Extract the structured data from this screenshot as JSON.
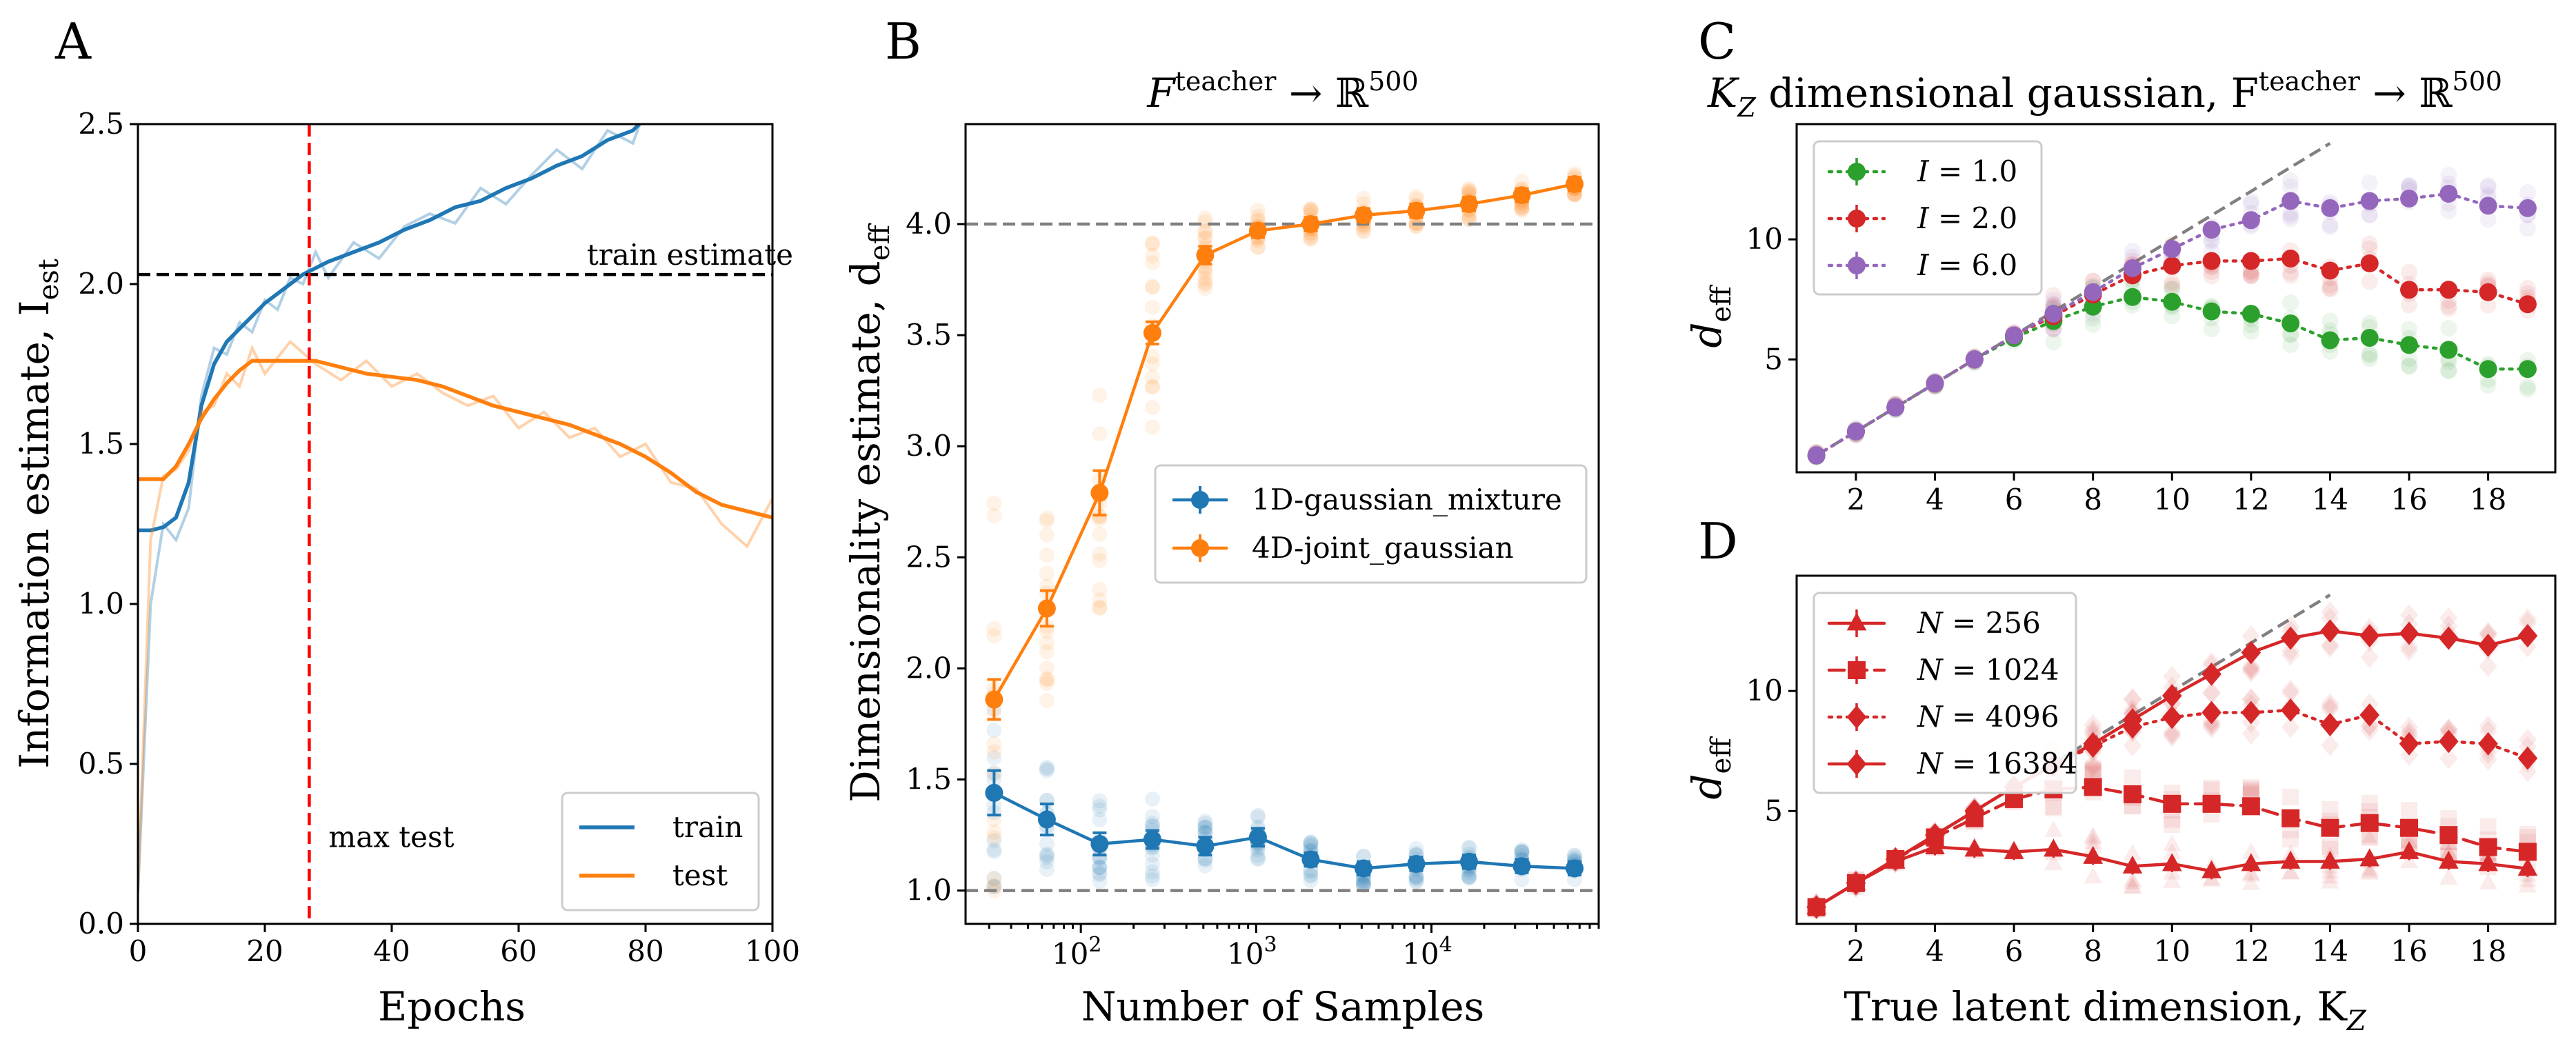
{
  "colors": {
    "blue": "#1f77b4",
    "orange": "#ff7f0e",
    "green": "#2ca02c",
    "red": "#d62728",
    "purple": "#9467bd",
    "gray": "#808080"
  },
  "chart_data": [
    {
      "id": "A",
      "panel_label": "A",
      "type": "line",
      "title": "",
      "xlabel": "Epochs",
      "ylabel": "Information estimate, I",
      "ylabel_sub": "est",
      "xlim": [
        0,
        100
      ],
      "ylim": [
        0,
        2.5
      ],
      "xticks": [
        "0",
        "20",
        "40",
        "60",
        "80",
        "100"
      ],
      "yticks": [
        "0.0",
        "0.5",
        "1.0",
        "1.5",
        "2.0",
        "2.5"
      ],
      "series": [
        {
          "name": "train",
          "color": "#1f77b4",
          "x": [
            0,
            2,
            4,
            6,
            8,
            10,
            12,
            14,
            16,
            18,
            20,
            22,
            24,
            26,
            28,
            30,
            34,
            38,
            42,
            46,
            50,
            54,
            58,
            62,
            66,
            70,
            74,
            78,
            80
          ],
          "smooth": [
            1.23,
            1.23,
            1.24,
            1.27,
            1.38,
            1.62,
            1.75,
            1.82,
            1.86,
            1.9,
            1.94,
            1.97,
            2.0,
            2.03,
            2.05,
            2.07,
            2.1,
            2.13,
            2.17,
            2.2,
            2.24,
            2.26,
            2.3,
            2.33,
            2.37,
            2.4,
            2.45,
            2.48,
            2.52
          ],
          "raw": [
            0.1,
            1.0,
            1.25,
            1.2,
            1.3,
            1.65,
            1.8,
            1.78,
            1.88,
            1.85,
            1.95,
            1.92,
            2.02,
            2.0,
            2.1,
            2.02,
            2.13,
            2.08,
            2.18,
            2.22,
            2.19,
            2.3,
            2.25,
            2.34,
            2.42,
            2.36,
            2.48,
            2.44,
            2.55
          ]
        },
        {
          "name": "test",
          "color": "#ff7f0e",
          "x": [
            0,
            2,
            4,
            6,
            8,
            10,
            12,
            14,
            16,
            18,
            20,
            24,
            28,
            32,
            36,
            40,
            44,
            48,
            52,
            56,
            60,
            64,
            68,
            72,
            76,
            80,
            84,
            88,
            92,
            96,
            100
          ],
          "smooth": [
            1.39,
            1.39,
            1.39,
            1.43,
            1.5,
            1.58,
            1.64,
            1.69,
            1.73,
            1.76,
            1.76,
            1.76,
            1.76,
            1.74,
            1.72,
            1.71,
            1.7,
            1.68,
            1.65,
            1.62,
            1.6,
            1.58,
            1.56,
            1.53,
            1.5,
            1.46,
            1.41,
            1.35,
            1.31,
            1.29,
            1.27
          ],
          "raw": [
            0.1,
            1.2,
            1.4,
            1.42,
            1.48,
            1.6,
            1.62,
            1.72,
            1.68,
            1.8,
            1.72,
            1.82,
            1.75,
            1.7,
            1.76,
            1.68,
            1.72,
            1.66,
            1.62,
            1.65,
            1.55,
            1.6,
            1.52,
            1.55,
            1.46,
            1.5,
            1.38,
            1.36,
            1.25,
            1.18,
            1.33
          ]
        }
      ],
      "hline": {
        "y": 2.03,
        "label": "train estimate"
      },
      "vline": {
        "x": 27,
        "label": "max test"
      },
      "legend": [
        "train",
        "test"
      ],
      "legend_loc": "lower-right"
    },
    {
      "id": "B",
      "panel_label": "B",
      "type": "scatter",
      "title": "F^teacher → ℝ^500",
      "title_main": "F",
      "title_sup": "teacher",
      "title_mid": " → ℝ",
      "title_sup2": "500",
      "xlabel": "Number of Samples",
      "ylabel": "Dimensionality estimate, d",
      "ylabel_sub": "eff",
      "xscale": "log",
      "xlim": [
        22,
        90000
      ],
      "ylim": [
        0.85,
        4.45
      ],
      "xticks": [
        {
          "v": 100,
          "base": "10",
          "exp": "2"
        },
        {
          "v": 1000,
          "base": "10",
          "exp": "3"
        },
        {
          "v": 10000,
          "base": "10",
          "exp": "4"
        }
      ],
      "yticks": [
        "1.0",
        "1.5",
        "2.0",
        "2.5",
        "3.0",
        "3.5",
        "4.0"
      ],
      "x": [
        32,
        64,
        128,
        256,
        512,
        1024,
        2048,
        4096,
        8192,
        16384,
        32768,
        65536
      ],
      "series": [
        {
          "name": "1D-gaussian_mixture",
          "color": "#1f77b4",
          "y": [
            1.44,
            1.32,
            1.21,
            1.23,
            1.2,
            1.24,
            1.14,
            1.1,
            1.12,
            1.13,
            1.11,
            1.1
          ],
          "err": [
            0.1,
            0.07,
            0.05,
            0.04,
            0.04,
            0.04,
            0.03,
            0.03,
            0.03,
            0.03,
            0.03,
            0.03
          ]
        },
        {
          "name": "4D-joint_gaussian",
          "color": "#ff7f0e",
          "y": [
            1.86,
            2.27,
            2.79,
            3.51,
            3.86,
            3.97,
            4.0,
            4.04,
            4.06,
            4.09,
            4.13,
            4.18
          ],
          "err": [
            0.09,
            0.08,
            0.1,
            0.05,
            0.04,
            0.03,
            0.03,
            0.03,
            0.03,
            0.03,
            0.03,
            0.03
          ]
        }
      ],
      "hlines": [
        1.0,
        4.0
      ],
      "legend": [
        "1D-gaussian_mixture",
        "4D-joint_gaussian"
      ],
      "legend_loc": "center-right"
    },
    {
      "id": "C",
      "panel_label": "C",
      "type": "line",
      "title": "K_Z dimensional gaussian, F^teacher → ℝ^500",
      "title_part1": "K",
      "title_sub1": "Z",
      "title_part2": " dimensional gaussian, F",
      "title_sup": "teacher",
      "title_part3": " → ℝ",
      "title_sup2": "500",
      "xlabel": "",
      "ylabel": "d",
      "ylabel_sub": "eff",
      "xlim": [
        0.5,
        19.7
      ],
      "ylim": [
        0.3,
        14.8
      ],
      "xticks": [
        "2",
        "4",
        "6",
        "8",
        "10",
        "12",
        "14",
        "16",
        "18"
      ],
      "yticks": [
        "5",
        "10"
      ],
      "x": [
        1,
        2,
        3,
        4,
        5,
        6,
        7,
        8,
        9,
        10,
        11,
        12,
        13,
        14,
        15,
        16,
        17,
        18,
        19
      ],
      "series": [
        {
          "name": "I = 1.0",
          "label_var": "I = ",
          "label_val": "1.0",
          "color": "#2ca02c",
          "marker": "circle",
          "dash": "dot",
          "y": [
            1.0,
            2.0,
            3.0,
            4.0,
            5.0,
            5.9,
            6.6,
            7.2,
            7.6,
            7.4,
            7.0,
            6.9,
            6.5,
            5.8,
            5.9,
            5.6,
            5.4,
            4.6,
            4.6
          ]
        },
        {
          "name": "I = 2.0",
          "label_var": "I = ",
          "label_val": "2.0",
          "color": "#d62728",
          "marker": "circle",
          "dash": "dot",
          "y": [
            1.0,
            2.0,
            3.0,
            4.0,
            5.0,
            6.0,
            6.8,
            7.7,
            8.5,
            8.9,
            9.1,
            9.1,
            9.2,
            8.7,
            9.0,
            7.9,
            7.9,
            7.8,
            7.3
          ]
        },
        {
          "name": "I = 6.0",
          "label_var": "I = ",
          "label_val": "6.0",
          "color": "#9467bd",
          "marker": "circle",
          "dash": "dot",
          "y": [
            1.0,
            2.0,
            3.0,
            4.0,
            5.0,
            6.0,
            6.9,
            7.8,
            8.8,
            9.6,
            10.4,
            10.8,
            11.6,
            11.3,
            11.6,
            11.7,
            11.9,
            11.4,
            11.3
          ]
        }
      ],
      "diagonal": [
        1,
        14
      ],
      "legend_loc": "upper-left"
    },
    {
      "id": "D",
      "panel_label": "D",
      "type": "line",
      "title": "",
      "xlabel": "True latent dimension, K",
      "xlabel_sub": "Z",
      "ylabel": "d",
      "ylabel_sub": "eff",
      "xlim": [
        0.5,
        19.7
      ],
      "ylim": [
        0.3,
        14.8
      ],
      "xticks": [
        "2",
        "4",
        "6",
        "8",
        "10",
        "12",
        "14",
        "16",
        "18"
      ],
      "yticks": [
        "5",
        "10"
      ],
      "x": [
        1,
        2,
        3,
        4,
        5,
        6,
        7,
        8,
        9,
        10,
        11,
        12,
        13,
        14,
        15,
        16,
        17,
        18,
        19
      ],
      "series": [
        {
          "name": "N = 256",
          "label_var": "N = ",
          "label_val": "256",
          "color": "#d62728",
          "marker": "triangle",
          "dash": "solid",
          "y": [
            1.0,
            2.0,
            2.9,
            3.5,
            3.4,
            3.3,
            3.4,
            3.1,
            2.7,
            2.8,
            2.5,
            2.8,
            2.9,
            2.9,
            3.0,
            3.3,
            2.9,
            2.8,
            2.6
          ]
        },
        {
          "name": "N = 1024",
          "label_var": "N = ",
          "label_val": "1024",
          "color": "#d62728",
          "marker": "square",
          "dash": "dash",
          "y": [
            1.0,
            2.0,
            3.0,
            3.9,
            4.7,
            5.5,
            5.9,
            6.0,
            5.7,
            5.3,
            5.3,
            5.2,
            4.7,
            4.3,
            4.5,
            4.3,
            4.0,
            3.5,
            3.3
          ]
        },
        {
          "name": "N = 4096",
          "label_var": "N = ",
          "label_val": "4096",
          "color": "#d62728",
          "marker": "diamond",
          "dash": "dot",
          "y": [
            1.0,
            2.0,
            3.0,
            4.0,
            5.0,
            6.0,
            6.9,
            7.7,
            8.5,
            8.9,
            9.1,
            9.1,
            9.2,
            8.6,
            9.0,
            7.8,
            7.9,
            7.8,
            7.2
          ]
        },
        {
          "name": "N = 16384",
          "label_var": "N = ",
          "label_val": "16384",
          "color": "#d62728",
          "marker": "diamond",
          "dash": "solid",
          "y": [
            1.0,
            2.0,
            3.0,
            4.0,
            5.0,
            6.0,
            6.9,
            7.8,
            8.8,
            9.8,
            10.7,
            11.6,
            12.2,
            12.5,
            12.3,
            12.4,
            12.2,
            11.9,
            12.3
          ]
        }
      ],
      "diagonal": [
        1,
        14
      ],
      "legend_loc": "upper-left"
    }
  ]
}
